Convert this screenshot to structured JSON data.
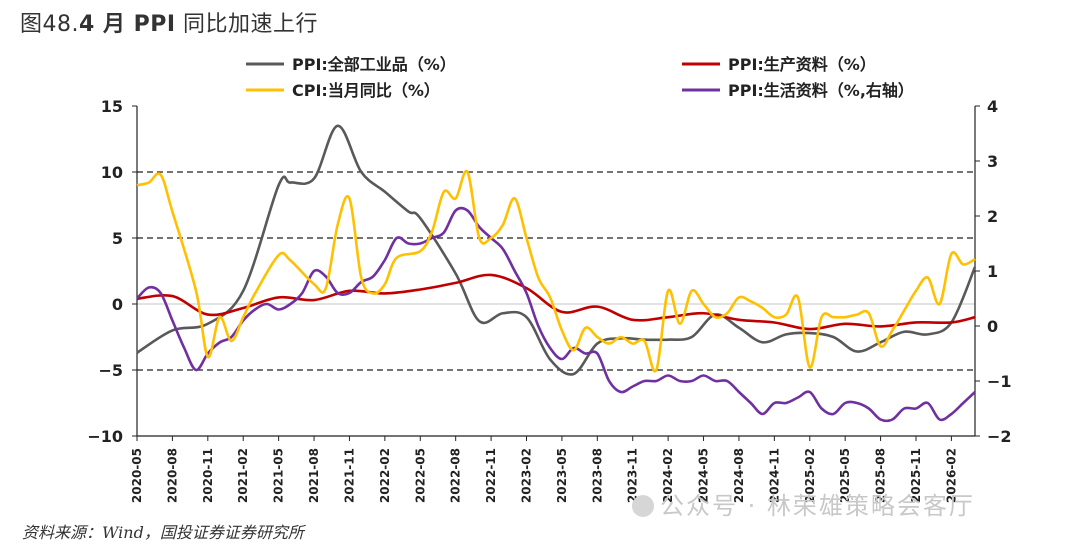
{
  "title": {
    "prefix": "图48.",
    "bold": "4 月 PPI",
    "suffix": " 同比加速上行"
  },
  "source": "资料来源：Wind，国投证券证券研究所",
  "watermark": "公众号 · 林荣雄策略会客厅",
  "chart_data": {
    "type": "line",
    "title": "4 月 PPI 同比加速上行",
    "left_axis": {
      "ylim": [
        -10,
        15
      ],
      "ticks": [
        -10,
        -5,
        0,
        5,
        10,
        15
      ]
    },
    "right_axis": {
      "ylim": [
        -2,
        4
      ],
      "ticks": [
        -2,
        -1,
        0,
        1,
        2,
        3,
        4
      ]
    },
    "grid": "dashed horizontal at left-axis 10, 5, -5",
    "legend_placement": "top",
    "x_tick_labels": [
      "2020-05",
      "2020-08",
      "2020-11",
      "2021-02",
      "2021-05",
      "2021-08",
      "2021-11",
      "2022-02",
      "2022-05",
      "2022-08",
      "2022-11",
      "2023-02",
      "2023-05",
      "2023-08",
      "2023-11",
      "2024-02",
      "2024-05",
      "2024-08",
      "2024-11",
      "2025-02",
      "2025-05",
      "2025-08",
      "2025-11",
      "2026-02"
    ],
    "series": [
      {
        "name": "PPI:全部工业品（%）",
        "axis": "left",
        "color": "#595959",
        "x": [
          "2020-05",
          "2020-08",
          "2020-11",
          "2021-02",
          "2021-05",
          "2021-06",
          "2021-08",
          "2021-10",
          "2021-12",
          "2022-02",
          "2022-04",
          "2022-05",
          "2022-08",
          "2022-10",
          "2022-12",
          "2023-02",
          "2023-04",
          "2023-06",
          "2023-08",
          "2023-10",
          "2023-12",
          "2024-02",
          "2024-04",
          "2024-06",
          "2024-08",
          "2024-10",
          "2024-12",
          "2025-02",
          "2025-04",
          "2025-06",
          "2025-08",
          "2025-10",
          "2025-12",
          "2026-02",
          "2026-04"
        ],
        "values": [
          -3.7,
          -2,
          -1.5,
          1,
          9,
          9.2,
          9.5,
          13.5,
          10,
          8.5,
          7,
          6.5,
          2.3,
          -1.3,
          -0.7,
          -1,
          -4.2,
          -5.3,
          -3,
          -2.6,
          -2.7,
          -2.7,
          -2.5,
          -0.8,
          -1.8,
          -2.9,
          -2.3,
          -2.2,
          -2.5,
          -3.6,
          -2.9,
          -2.1,
          -2.3,
          -1.4,
          2.8
        ]
      },
      {
        "name": "PPI:生产资料（%）",
        "axis": "left",
        "color": "#c00000",
        "x": [
          "2020-05",
          "2020-08",
          "2020-11",
          "2021-02",
          "2021-05",
          "2021-08",
          "2021-11",
          "2022-02",
          "2022-05",
          "2022-08",
          "2022-11",
          "2023-02",
          "2023-05",
          "2023-08",
          "2023-11",
          "2024-02",
          "2024-05",
          "2024-08",
          "2024-11",
          "2025-02",
          "2025-05",
          "2025-08",
          "2025-11",
          "2026-02",
          "2026-04"
        ],
        "values": [
          0.4,
          0.6,
          -0.8,
          -0.3,
          0.5,
          0.3,
          1,
          0.8,
          1.1,
          1.6,
          2.2,
          1.2,
          -0.6,
          -0.2,
          -1.2,
          -1,
          -0.7,
          -1.2,
          -1.4,
          -1.9,
          -1.5,
          -1.7,
          -1.4,
          -1.4,
          -1
        ]
      },
      {
        "name": "CPI:当月同比（%）",
        "axis": "left",
        "color": "#ffc000",
        "x": [
          "2020-05",
          "2020-06",
          "2020-07",
          "2020-08",
          "2020-10",
          "2020-11",
          "2020-12",
          "2021-01",
          "2021-02",
          "2021-03",
          "2021-05",
          "2021-06",
          "2021-08",
          "2021-09",
          "2021-10",
          "2021-11",
          "2021-12",
          "2022-01",
          "2022-02",
          "2022-03",
          "2022-05",
          "2022-06",
          "2022-07",
          "2022-08",
          "2022-09",
          "2022-10",
          "2022-11",
          "2022-12",
          "2023-01",
          "2023-02",
          "2023-03",
          "2023-04",
          "2023-05",
          "2023-06",
          "2023-07",
          "2023-08",
          "2023-09",
          "2023-10",
          "2023-11",
          "2023-12",
          "2024-01",
          "2024-02",
          "2024-03",
          "2024-04",
          "2024-05",
          "2024-06",
          "2024-07",
          "2024-08",
          "2024-09",
          "2024-10",
          "2024-11",
          "2024-12",
          "2025-01",
          "2025-02",
          "2025-03",
          "2025-04",
          "2025-05",
          "2025-06",
          "2025-07",
          "2025-08",
          "2025-09",
          "2025-10",
          "2025-11",
          "2025-12",
          "2026-01",
          "2026-02",
          "2026-03",
          "2026-04"
        ],
        "values": [
          9,
          9.2,
          9.8,
          7,
          1,
          -4,
          -1,
          -2.8,
          -1,
          0.8,
          3.7,
          3.3,
          1.5,
          1.2,
          6,
          8,
          2,
          0.8,
          1.5,
          3.5,
          4,
          5.5,
          8.5,
          8,
          10,
          5,
          5,
          6,
          8,
          5,
          2,
          0.5,
          -2,
          -3.5,
          -1.8,
          -2.5,
          -3,
          -2.5,
          -3,
          -2.8,
          -5,
          1,
          -1.5,
          1,
          0,
          -1,
          -0.7,
          0.5,
          0.2,
          -0.3,
          -1,
          -0.8,
          0.5,
          -4.8,
          -1,
          -1,
          -1,
          -0.8,
          -0.7,
          -3.2,
          -2,
          -0.5,
          1,
          2,
          0,
          3.8,
          3,
          3.4
        ]
      },
      {
        "name": "PPI:生活资料（%,右轴）",
        "axis": "right",
        "color": "#7030a0",
        "x": [
          "2020-05",
          "2020-06",
          "2020-07",
          "2020-08",
          "2020-09",
          "2020-10",
          "2020-11",
          "2020-12",
          "2021-01",
          "2021-02",
          "2021-03",
          "2021-04",
          "2021-05",
          "2021-06",
          "2021-07",
          "2021-08",
          "2021-09",
          "2021-10",
          "2021-11",
          "2021-12",
          "2022-01",
          "2022-02",
          "2022-03",
          "2022-04",
          "2022-05",
          "2022-06",
          "2022-07",
          "2022-08",
          "2022-09",
          "2022-10",
          "2022-11",
          "2022-12",
          "2023-01",
          "2023-02",
          "2023-03",
          "2023-04",
          "2023-05",
          "2023-06",
          "2023-07",
          "2023-08",
          "2023-09",
          "2023-10",
          "2023-11",
          "2023-12",
          "2024-01",
          "2024-02",
          "2024-03",
          "2024-04",
          "2024-05",
          "2024-06",
          "2024-07",
          "2024-08",
          "2024-09",
          "2024-10",
          "2024-11",
          "2024-12",
          "2025-01",
          "2025-02",
          "2025-03",
          "2025-04",
          "2025-05",
          "2025-06",
          "2025-07",
          "2025-08",
          "2025-09",
          "2025-10",
          "2025-11",
          "2025-12",
          "2026-01",
          "2026-02",
          "2026-03",
          "2026-04"
        ],
        "values": [
          0.5,
          0.7,
          0.6,
          0.1,
          -0.4,
          -0.8,
          -0.5,
          -0.3,
          -0.2,
          0.1,
          0.3,
          0.4,
          0.3,
          0.4,
          0.6,
          1,
          0.9,
          0.6,
          0.6,
          0.8,
          0.9,
          1.2,
          1.6,
          1.5,
          1.5,
          1.6,
          1.7,
          2.1,
          2.1,
          1.8,
          1.6,
          1.4,
          1,
          0.6,
          0,
          -0.4,
          -0.6,
          -0.4,
          -0.5,
          -0.5,
          -1,
          -1.2,
          -1.1,
          -1,
          -1,
          -0.9,
          -1,
          -1,
          -0.9,
          -1,
          -1,
          -1.2,
          -1.4,
          -1.6,
          -1.4,
          -1.4,
          -1.3,
          -1.2,
          -1.5,
          -1.6,
          -1.4,
          -1.4,
          -1.5,
          -1.7,
          -1.7,
          -1.5,
          -1.5,
          -1.4,
          -1.7,
          -1.6,
          -1.4,
          -1.2
        ]
      }
    ]
  }
}
